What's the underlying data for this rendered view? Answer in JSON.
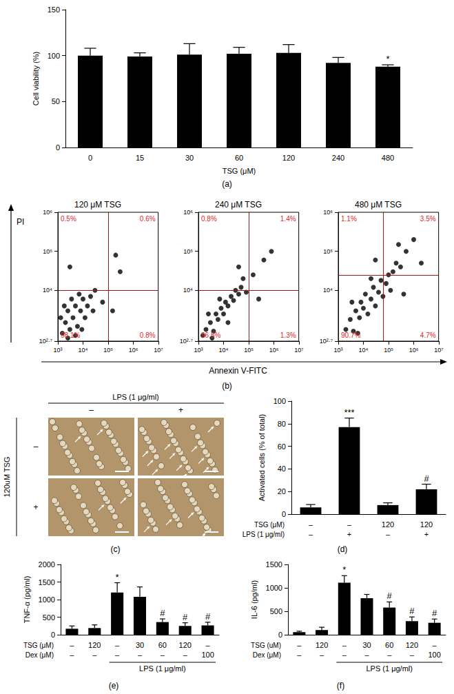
{
  "chart_data": [
    {
      "panel": "(a)",
      "type": "bar",
      "xlabel": "TSG (μM)",
      "ylabel": "Cell viability (%)",
      "categories": [
        "0",
        "15",
        "30",
        "60",
        "120",
        "240",
        "480"
      ],
      "values": [
        100,
        99,
        101,
        102,
        103,
        92,
        88
      ],
      "errors": [
        8,
        4,
        12,
        7,
        9,
        6,
        2
      ],
      "color": "#000000",
      "ylim": [
        0,
        150
      ],
      "yticks": [
        0,
        50,
        100,
        150
      ],
      "grid": false,
      "annotations": [
        {
          "index": 6,
          "text": "*"
        }
      ]
    },
    {
      "panel": "(b)",
      "type": "scatter",
      "xlabel": "Annexin V-FITC",
      "ylabel": "PI",
      "log": true,
      "color": "#000000",
      "xlim": [
        1000,
        10000000
      ],
      "ylim": [
        501.187,
        1000000
      ],
      "xticks": [
        {
          "value": 1000,
          "label": "10³"
        },
        {
          "value": 10000,
          "label": "10⁴"
        },
        {
          "value": 100000,
          "label": "10⁵"
        },
        {
          "value": 1000000,
          "label": "10⁶"
        },
        {
          "value": 10000000,
          "label": "10⁷"
        }
      ],
      "yticks": [
        {
          "value": 501.187,
          "label": "10²·⁷"
        },
        {
          "value": 10000,
          "label": "10⁴"
        },
        {
          "value": 100000,
          "label": "10⁵"
        },
        {
          "value": 1000000,
          "label": "10⁶"
        }
      ],
      "plots": [
        {
          "title": "120 μM TSG",
          "x": [
            1500,
            2000,
            3000,
            2500,
            4000,
            5000,
            6000,
            8000,
            10000,
            12000,
            15000,
            20000,
            3500,
            1800,
            7000,
            25000,
            5000,
            2500,
            9000,
            30000,
            1300,
            60000,
            150000,
            300000,
            200000,
            3000
          ],
          "y": [
            800,
            1500,
            1000,
            3000,
            2000,
            4000,
            1200,
            3000,
            6000,
            2000,
            4000,
            7000,
            6000,
            4000,
            8000,
            3000,
            700,
            600,
            1000,
            10000,
            2000,
            5000,
            3000,
            30000,
            80000,
            40000
          ],
          "gate": [
            100000,
            10000
          ],
          "quadrants": {
            "values": [
              0.5,
              0.6,
              98.1,
              0.8
            ],
            "value_labels": [
              "0.5%",
              "0.6%",
              "98.1%",
              "0.8%"
            ]
          }
        },
        {
          "title": "240 μM TSG",
          "x": [
            1500,
            2000,
            3000,
            4000,
            5000,
            6000,
            8000,
            10000,
            12000,
            15000,
            20000,
            25000,
            30000,
            40000,
            50000,
            2500,
            7000,
            3500,
            15000,
            60000,
            80000,
            150000,
            400000,
            250000,
            40000,
            800000
          ],
          "y": [
            700,
            1000,
            1500,
            900,
            2500,
            1800,
            3500,
            2500,
            5000,
            4000,
            7000,
            5500,
            10000,
            8000,
            12000,
            2500,
            6000,
            600,
            1500,
            20000,
            9000,
            25000,
            60000,
            6000,
            40000,
            100000
          ],
          "gate": [
            100000,
            10000
          ],
          "quadrants": {
            "values": [
              0.8,
              1.4,
              96.5,
              1.3
            ],
            "value_labels": [
              "0.8%",
              "1.4%",
              "96.5%",
              "1.3%"
            ]
          }
        },
        {
          "title": "480 μM TSG",
          "x": [
            2000,
            3000,
            4000,
            5000,
            7000,
            8000,
            10000,
            12000,
            15000,
            20000,
            25000,
            30000,
            40000,
            50000,
            60000,
            80000,
            100000,
            120000,
            150000,
            3500,
            6000,
            20000,
            200000,
            300000,
            500000,
            400000,
            1000000,
            250000,
            30000,
            2000000
          ],
          "y": [
            1000,
            1800,
            900,
            3000,
            2000,
            5000,
            3500,
            8000,
            2500,
            6000,
            12000,
            4000,
            9000,
            18000,
            7000,
            15000,
            25000,
            10000,
            30000,
            5000,
            800,
            20000,
            50000,
            40000,
            100000,
            8000,
            200000,
            150000,
            60000,
            50000
          ],
          "gate": [
            63000,
            25000
          ],
          "quadrants": {
            "values": [
              1.1,
              3.5,
              90.7,
              4.7
            ],
            "value_labels": [
              "1.1%",
              "3.5%",
              "90.7%",
              "4.7%"
            ]
          }
        }
      ]
    },
    {
      "panel": "(c)",
      "type": "image",
      "column_header": "LPS (1 μg/ml)",
      "columns": [
        "–",
        "+"
      ],
      "row_header": "120uM TSG",
      "rows": [
        "–",
        "+"
      ]
    },
    {
      "panel": "(d)",
      "type": "bar",
      "ylabel": "Activated cells (% of total)",
      "category_rows": [
        {
          "label": "TSG (μM)",
          "values": [
            "–",
            "–",
            "120",
            "120"
          ]
        },
        {
          "label": "LPS (1 μg/ml)",
          "values": [
            "–",
            "+",
            "–",
            "+"
          ]
        }
      ],
      "values": [
        6,
        77,
        8,
        22
      ],
      "errors": [
        2.5,
        8,
        2,
        4.5
      ],
      "color": "#000000",
      "ylim": [
        0,
        100
      ],
      "yticks": [
        0,
        20,
        40,
        60,
        80,
        100
      ],
      "annotations": [
        {
          "index": 1,
          "text": "***"
        },
        {
          "index": 3,
          "text": "#"
        }
      ]
    },
    {
      "panel": "(e)",
      "type": "bar",
      "ylabel": "TNF-α (pg/ml)",
      "category_rows": [
        {
          "label": "TSG (μM)",
          "values": [
            "–",
            "120",
            "–",
            "30",
            "60",
            "120",
            "–"
          ]
        },
        {
          "label": "Dex (μM)",
          "values": [
            "–",
            "–",
            "–",
            "–",
            "–",
            "–",
            "100"
          ]
        }
      ],
      "group_label": "LPS (1 μg/ml)",
      "group_members": [
        false,
        false,
        true,
        true,
        true,
        true,
        true
      ],
      "values": [
        170,
        190,
        1200,
        1080,
        360,
        250,
        265
      ],
      "errors": [
        80,
        90,
        280,
        280,
        90,
        90,
        90
      ],
      "color": "#000000",
      "ylim": [
        0,
        2000
      ],
      "yticks": [
        0,
        500,
        1000,
        1500,
        2000
      ],
      "annotations": [
        {
          "index": 2,
          "text": "*"
        },
        {
          "index": 4,
          "text": "#"
        },
        {
          "index": 5,
          "text": "#"
        },
        {
          "index": 6,
          "text": "#"
        }
      ]
    },
    {
      "panel": "(f)",
      "type": "bar",
      "ylabel": "IL-6 (pg/ml)",
      "category_rows": [
        {
          "label": "TSG (uM)",
          "values": [
            "–",
            "120",
            "–",
            "30",
            "60",
            "120",
            "–"
          ]
        },
        {
          "label": "Dex (μM)",
          "values": [
            "–",
            "–",
            "–",
            "–",
            "–",
            "–",
            "100"
          ]
        }
      ],
      "group_label": "LPS (1 μg/ml)",
      "group_members": [
        false,
        false,
        true,
        true,
        true,
        true,
        true
      ],
      "values": [
        55,
        100,
        1110,
        780,
        580,
        290,
        255
      ],
      "errors": [
        20,
        60,
        150,
        80,
        120,
        90,
        80
      ],
      "color": "#000000",
      "ylim": [
        0,
        1500
      ],
      "yticks": [
        0,
        500,
        1000,
        1500
      ],
      "annotations": [
        {
          "index": 2,
          "text": "*"
        },
        {
          "index": 4,
          "text": "#"
        },
        {
          "index": 5,
          "text": "#"
        },
        {
          "index": 6,
          "text": "#"
        }
      ]
    }
  ]
}
